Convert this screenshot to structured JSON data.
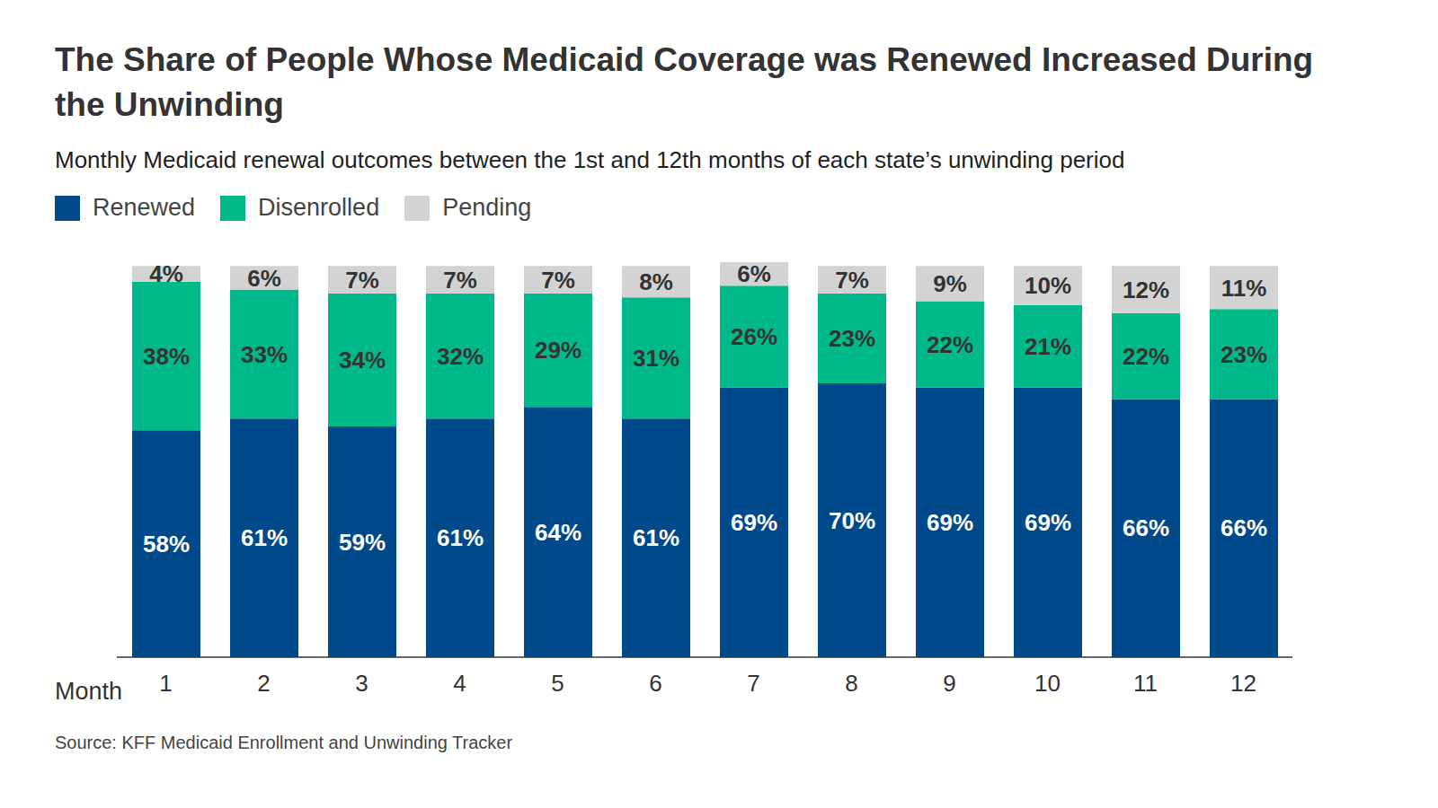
{
  "chart_data": {
    "type": "bar",
    "title": "The Share of People Whose Medicaid Coverage was Renewed Increased During the Unwinding",
    "subtitle": "Monthly Medicaid renewal outcomes between the 1st and 12th months of each state’s unwinding period",
    "x_label": "Month",
    "source": "Source: KFF Medicaid Enrollment and Unwinding Tracker",
    "categories": [
      "1",
      "2",
      "3",
      "4",
      "5",
      "6",
      "7",
      "8",
      "9",
      "10",
      "11",
      "12"
    ],
    "series": [
      {
        "name": "Renewed",
        "color": "#00498a",
        "values": [
          58,
          61,
          59,
          61,
          64,
          61,
          69,
          70,
          69,
          69,
          66,
          66
        ],
        "value_labels": [
          "58%",
          "61%",
          "59%",
          "61%",
          "64%",
          "61%",
          "69%",
          "70%",
          "69%",
          "69%",
          "66%",
          "66%"
        ]
      },
      {
        "name": "Disenrolled",
        "color": "#00b98a",
        "values": [
          38,
          33,
          34,
          32,
          29,
          31,
          26,
          23,
          22,
          21,
          22,
          23
        ],
        "value_labels": [
          "38%",
          "33%",
          "34%",
          "32%",
          "29%",
          "31%",
          "26%",
          "23%",
          "22%",
          "21%",
          "22%",
          "23%"
        ]
      },
      {
        "name": "Pending",
        "color": "#d3d3d3",
        "values": [
          4,
          6,
          7,
          7,
          7,
          8,
          6,
          7,
          9,
          10,
          12,
          11
        ],
        "value_labels": [
          "4%",
          "6%",
          "7%",
          "7%",
          "7%",
          "8%",
          "6%",
          "7%",
          "9%",
          "10%",
          "12%",
          "11%"
        ]
      }
    ],
    "ylim": [
      0,
      101
    ],
    "stacked": true,
    "data_labels": true,
    "legend": "top left",
    "tick_labels": "x",
    "grid": false
  }
}
